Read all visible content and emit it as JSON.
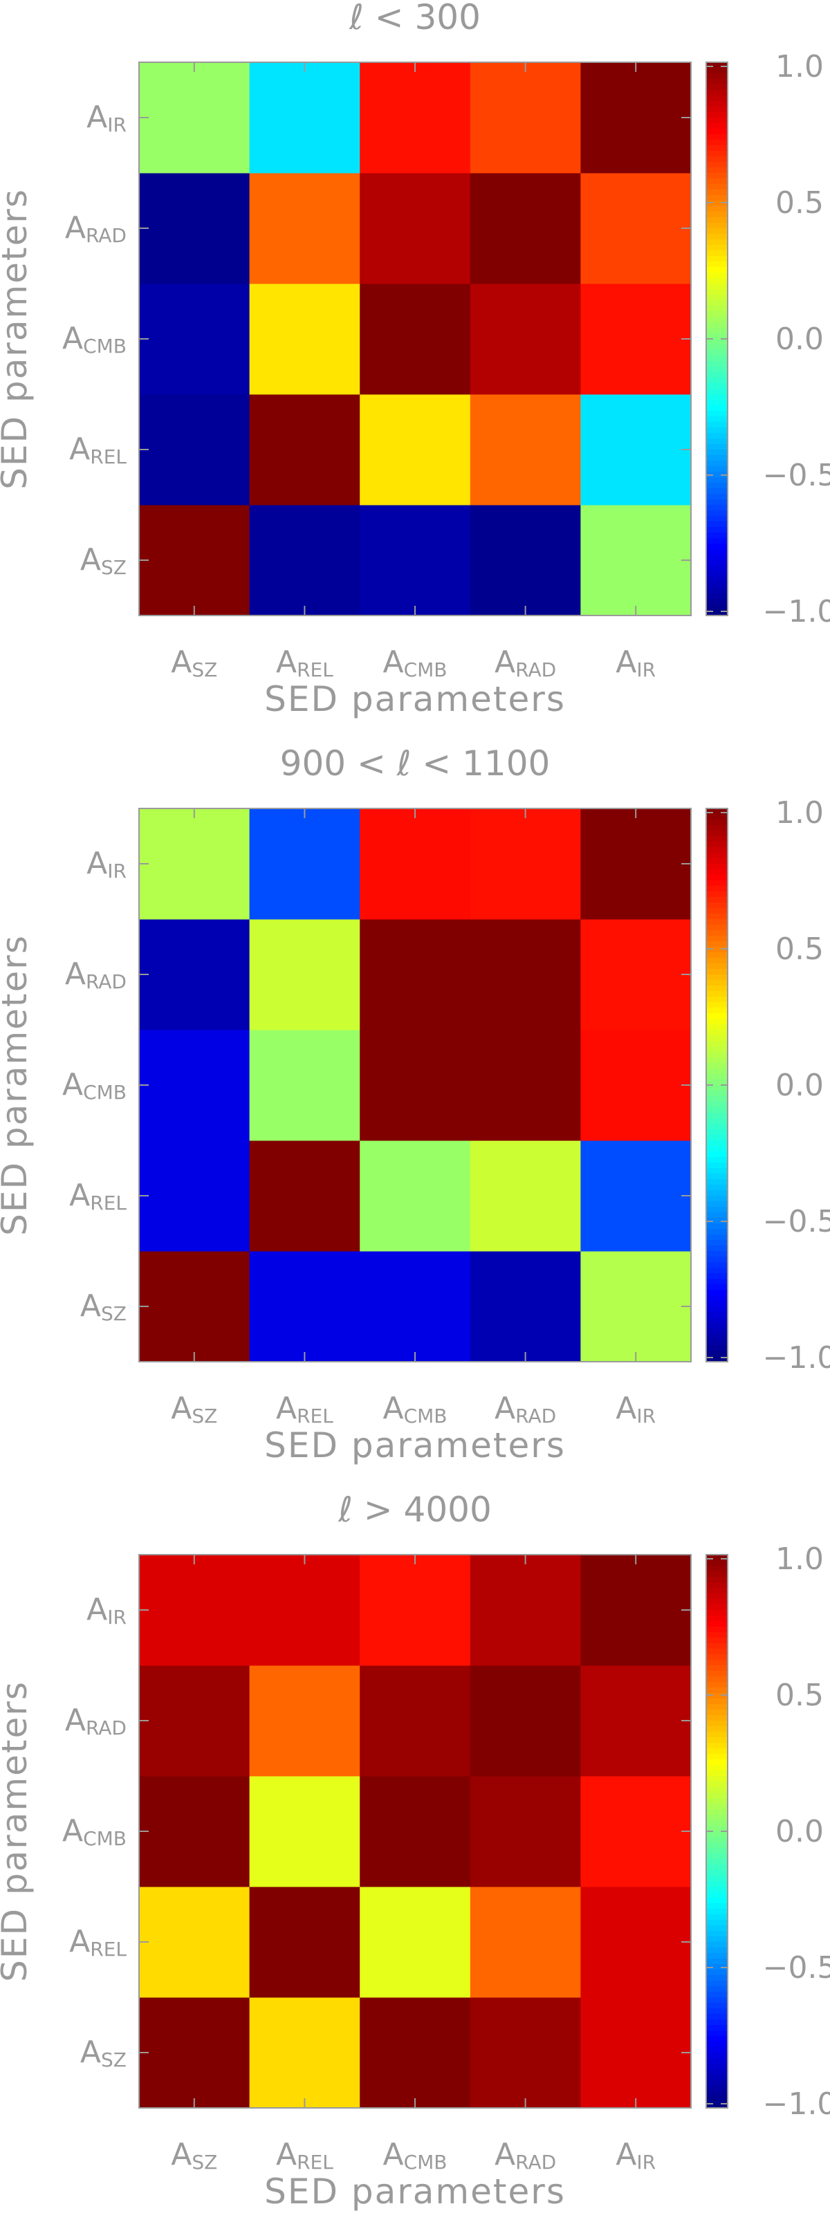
{
  "chart_data": [
    {
      "type": "heatmap",
      "title": "ℓ < 300",
      "xlabel": "SED parameters",
      "ylabel": "SED parameters",
      "x_categories": [
        "SZ",
        "REL",
        "CMB",
        "RAD",
        "IR"
      ],
      "y_categories": [
        "SZ",
        "REL",
        "CMB",
        "RAD",
        "IR"
      ],
      "category_prefix": "A",
      "values": [
        [
          1.0,
          -0.95,
          -0.92,
          -0.97,
          0.05
        ],
        [
          -0.95,
          1.0,
          0.3,
          0.55,
          -0.3
        ],
        [
          -0.92,
          0.3,
          1.0,
          0.9,
          0.72
        ],
        [
          -0.97,
          0.55,
          0.9,
          1.0,
          0.62
        ],
        [
          0.05,
          -0.3,
          0.72,
          0.62,
          1.0
        ]
      ],
      "colorbar_range": [
        -1.0,
        1.0
      ],
      "colorbar_ticks": [
        "1.0",
        "0.5",
        "0.0",
        "−0.5",
        "−1.0"
      ],
      "colormap": "jet"
    },
    {
      "type": "heatmap",
      "title": "900 < ℓ < 1100",
      "xlabel": "SED parameters",
      "ylabel": "SED parameters",
      "x_categories": [
        "SZ",
        "REL",
        "CMB",
        "RAD",
        "IR"
      ],
      "y_categories": [
        "SZ",
        "REL",
        "CMB",
        "RAD",
        "IR"
      ],
      "category_prefix": "A",
      "values": [
        [
          1.0,
          -0.8,
          -0.8,
          -0.9,
          0.1
        ],
        [
          -0.8,
          1.0,
          0.05,
          0.15,
          -0.6
        ],
        [
          -0.8,
          0.05,
          1.0,
          1.0,
          0.73
        ],
        [
          -0.9,
          0.15,
          1.0,
          1.0,
          0.72
        ],
        [
          0.1,
          -0.6,
          0.73,
          0.72,
          1.0
        ]
      ],
      "colorbar_range": [
        -1.0,
        1.0
      ],
      "colorbar_ticks": [
        "1.0",
        "0.5",
        "0.0",
        "−0.5",
        "−1.0"
      ],
      "colormap": "jet"
    },
    {
      "type": "heatmap",
      "title": "ℓ > 4000",
      "xlabel": "SED parameters",
      "ylabel": "SED parameters",
      "x_categories": [
        "SZ",
        "REL",
        "CMB",
        "RAD",
        "IR"
      ],
      "y_categories": [
        "SZ",
        "REL",
        "CMB",
        "RAD",
        "IR"
      ],
      "category_prefix": "A",
      "values": [
        [
          1.0,
          0.32,
          1.0,
          0.95,
          0.82
        ],
        [
          0.32,
          1.0,
          0.2,
          0.55,
          0.82
        ],
        [
          1.0,
          0.2,
          1.0,
          0.95,
          0.72
        ],
        [
          0.95,
          0.55,
          0.95,
          1.0,
          0.9
        ],
        [
          0.82,
          0.82,
          0.72,
          0.9,
          1.0
        ]
      ],
      "colorbar_range": [
        -1.0,
        1.0
      ],
      "colorbar_ticks": [
        "1.0",
        "0.5",
        "0.0",
        "−0.5",
        "−1.0"
      ],
      "colormap": "jet"
    }
  ]
}
